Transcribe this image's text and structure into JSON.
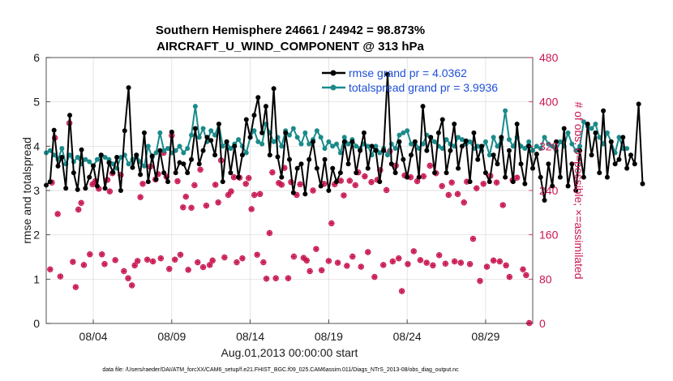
{
  "chart_data": {
    "type": "line",
    "title_line1": "Southern Hemisphere 24661 / 24942 = 98.873%",
    "title_line2": "AIRCRAFT_U_WIND_COMPONENT @ 313 hPa",
    "ylabel_left": "rmse and totalspread",
    "ylabel_right": "# of obs: o=possible; ×=assimilated",
    "xlabel": "Aug.01,2013 00:00:00 start",
    "footnote": "data file: /Users/raeder/DAI/ATM_forcXX/CAM6_setup/f.e21.FHIST_BGC.f09_025.CAM6assim.011/Diags_NTrS_2013-08/obs_diag_output.nc",
    "xlim": [
      1.0,
      32.0
    ],
    "ylim_left": [
      0,
      6
    ],
    "ylim_right": [
      0,
      480
    ],
    "yticks_left": [
      "0",
      "1",
      "2",
      "3",
      "4",
      "5",
      "6"
    ],
    "yticks_right": [
      "0",
      "80",
      "160",
      "240",
      "320",
      "400",
      "480"
    ],
    "xticks": [
      {
        "x": 4,
        "label": "08/04"
      },
      {
        "x": 9,
        "label": "08/09"
      },
      {
        "x": 14,
        "label": "08/14"
      },
      {
        "x": 19,
        "label": "08/19"
      },
      {
        "x": 24,
        "label": "08/24"
      },
      {
        "x": 29,
        "label": "08/29"
      }
    ],
    "legend": [
      {
        "name": "rmse grand pr = 4.0362",
        "color": "#000000"
      },
      {
        "name": "totalspread grand pr = 3.9936",
        "color": "#1a8a8a"
      }
    ],
    "series_colors": {
      "rmse": "#000000",
      "totalspread": "#1a8a8a",
      "obs": "#c8174f"
    },
    "x0": 1.0,
    "dx": 0.25,
    "rmse": [
      3.12,
      3.2,
      4.36,
      3.55,
      3.75,
      3.05,
      4.7,
      3.4,
      3.02,
      3.92,
      3.05,
      3.3,
      3.56,
      3.1,
      3.8,
      3.05,
      3.63,
      3.41,
      3.75,
      3.0,
      4.35,
      5.32,
      3.52,
      3.8,
      3.36,
      4.3,
      3.2,
      3.78,
      3.25,
      3.9,
      3.4,
      3.2,
      4.32,
      3.4,
      3.63,
      3.6,
      3.4,
      3.7,
      4.4,
      3.6,
      3.9,
      4.2,
      4.13,
      3.8,
      4.5,
      3.2,
      4.1,
      3.4,
      4.0,
      3.3,
      3.8,
      4.6,
      4.2,
      4.7,
      5.1,
      4.3,
      4.9,
      3.8,
      5.3,
      3.76,
      3.3,
      4.3,
      3.7,
      2.95,
      3.5,
      3.6,
      2.92,
      3.7,
      4.1,
      3.5,
      3.1,
      3.7,
      3.0,
      3.5,
      3.2,
      3.4,
      4.1,
      3.6,
      4.1,
      3.4,
      3.9,
      4.3,
      3.5,
      4.0,
      3.9,
      3.2,
      3.9,
      5.62,
      3.6,
      3.4,
      4.1,
      3.7,
      3.3,
      3.8,
      4.1,
      3.3,
      4.9,
      3.9,
      4.2,
      3.4,
      4.3,
      4.6,
      3.4,
      3.9,
      4.5,
      3.5,
      4.0,
      4.12,
      3.2,
      4.3,
      3.7,
      4.0,
      3.4,
      3.2,
      3.8,
      3.6,
      4.2,
      3.3,
      3.9,
      3.2,
      4.5,
      3.6,
      3.15,
      4.0,
      3.5,
      3.82,
      3.3,
      2.78,
      3.6,
      3.1,
      4.1,
      3.3,
      4.4,
      3.1,
      3.6,
      3.0,
      3.9,
      3.3,
      4.5,
      3.8,
      4.3,
      3.4,
      4.8,
      3.3,
      4.1,
      3.6,
      3.7,
      4.2,
      3.5,
      3.8,
      3.6,
      4.95,
      3.15
    ],
    "spread": [
      3.85,
      3.9,
      3.8,
      3.7,
      3.95,
      3.6,
      3.8,
      3.65,
      3.75,
      3.6,
      3.7,
      3.65,
      3.55,
      3.7,
      3.8,
      3.75,
      3.7,
      3.6,
      3.5,
      3.75,
      3.8,
      3.6,
      3.7,
      3.8,
      3.65,
      3.55,
      4.0,
      3.75,
      3.85,
      4.3,
      3.9,
      3.95,
      3.85,
      3.9,
      4.0,
      3.85,
      3.95,
      4.25,
      4.9,
      4.2,
      4.4,
      4.1,
      4.35,
      4.25,
      4.5,
      4.0,
      4.1,
      3.95,
      4.05,
      4.15,
      4.0,
      3.85,
      4.2,
      4.35,
      4.1,
      4.05,
      4.5,
      4.3,
      4.1,
      4.2,
      4.0,
      4.35,
      4.25,
      4.4,
      4.2,
      4.05,
      4.3,
      4.05,
      4.15,
      4.35,
      4.2,
      3.95,
      4.1,
      4.0,
      4.05,
      3.85,
      4.2,
      4.05,
      4.15,
      4.0,
      3.95,
      4.05,
      4.0,
      3.8,
      4.0,
      3.85,
      3.95,
      3.8,
      4.05,
      3.95,
      4.25,
      4.3,
      4.35,
      4.05,
      4.1,
      3.95,
      4.05,
      4.25,
      4.2,
      4.1,
      4.0,
      3.95,
      4.15,
      4.05,
      4.0,
      4.2,
      4.15,
      4.05,
      4.1,
      3.95,
      4.0,
      3.9,
      4.1,
      3.8,
      4.2,
      4.0,
      4.15,
      4.8,
      4.15,
      4.0,
      4.2,
      4.0,
      3.95,
      4.1,
      3.9,
      4.0,
      3.95,
      4.2,
      4.05,
      4.0,
      3.9,
      4.1,
      4.0,
      4.3,
      4.05,
      3.9,
      4.0,
      4.55,
      4.45,
      4.4,
      4.5,
      4.2,
      4.05,
      4.3,
      4.1,
      3.85,
      4.2,
      3.95,
      3.95
    ],
    "obs_possible": [
      [
        1.25,
        1.22
      ],
      [
        1.36,
        3.18
      ],
      [
        1.55,
        4.19
      ],
      [
        1.73,
        2.47
      ],
      [
        1.9,
        1.06
      ],
      [
        2.48,
        4.52
      ],
      [
        2.7,
        1.39
      ],
      [
        2.88,
        0.82
      ],
      [
        3.05,
        2.57
      ],
      [
        3.23,
        2.72
      ],
      [
        3.4,
        1.32
      ],
      [
        3.78,
        1.56
      ],
      [
        3.95,
        3.14
      ],
      [
        4.13,
        3.21
      ],
      [
        4.35,
        3.04
      ],
      [
        4.55,
        1.56
      ],
      [
        4.72,
        1.34
      ],
      [
        4.9,
        3.24
      ],
      [
        5.05,
        2.98
      ],
      [
        5.22,
        3.39
      ],
      [
        5.4,
        1.43
      ],
      [
        5.75,
        3.35
      ],
      [
        5.95,
        1.18
      ],
      [
        6.22,
        1.02
      ],
      [
        6.46,
        0.86
      ],
      [
        6.64,
        1.31
      ],
      [
        6.82,
        1.41
      ],
      [
        7.0,
        2.85
      ],
      [
        7.15,
        3.15
      ],
      [
        7.44,
        1.44
      ],
      [
        7.63,
        3.54
      ],
      [
        7.8,
        1.4
      ],
      [
        7.96,
        3.25
      ],
      [
        8.13,
        3.37
      ],
      [
        8.3,
        1.47
      ],
      [
        8.48,
        3.85
      ],
      [
        8.66,
        3.31
      ],
      [
        8.84,
        1.23
      ],
      [
        9.0,
        4.24
      ],
      [
        9.2,
        1.44
      ],
      [
        9.37,
        3.21
      ],
      [
        9.55,
        1.55
      ],
      [
        9.72,
        2.62
      ],
      [
        9.9,
        2.86
      ],
      [
        10.05,
        1.21
      ],
      [
        10.25,
        2.61
      ],
      [
        10.45,
        3.12
      ],
      [
        10.65,
        1.38
      ],
      [
        10.82,
        3.47
      ],
      [
        11.0,
        1.27
      ],
      [
        11.2,
        2.66
      ],
      [
        11.42,
        1.32
      ],
      [
        11.6,
        1.42
      ],
      [
        11.78,
        3.13
      ],
      [
        11.96,
        2.73
      ],
      [
        12.14,
        3.68
      ],
      [
        12.36,
        1.49
      ],
      [
        12.6,
        2.9
      ],
      [
        12.78,
        2.98
      ],
      [
        12.96,
        3.3
      ],
      [
        13.14,
        1.38
      ],
      [
        13.32,
        3.29
      ],
      [
        13.5,
        1.47
      ],
      [
        13.72,
        3.15
      ],
      [
        13.9,
        3.28
      ],
      [
        14.08,
        2.58
      ],
      [
        14.26,
        2.9
      ],
      [
        14.44,
        1.55
      ],
      [
        14.62,
        2.92
      ],
      [
        14.84,
        1.38
      ],
      [
        15.03,
        1.01
      ],
      [
        15.23,
        2.04
      ],
      [
        15.41,
        3.41
      ],
      [
        15.63,
        1.02
      ],
      [
        15.82,
        3.17
      ],
      [
        16.0,
        3.13
      ],
      [
        16.18,
        3.51
      ],
      [
        16.42,
        1.02
      ],
      [
        16.6,
        3.19
      ],
      [
        16.78,
        1.51
      ],
      [
        16.96,
        2.9
      ],
      [
        17.18,
        3.14
      ],
      [
        17.4,
        1.48
      ],
      [
        17.6,
        1.42
      ],
      [
        17.8,
        1.18
      ],
      [
        18.0,
        3.0
      ],
      [
        18.2,
        1.68
      ],
      [
        18.55,
        1.2
      ],
      [
        18.7,
        3.15
      ],
      [
        19.0,
        1.41
      ],
      [
        19.18,
        2.26
      ],
      [
        19.38,
        3.14
      ],
      [
        19.58,
        1.37
      ],
      [
        19.77,
        3.22
      ],
      [
        19.96,
        2.89
      ],
      [
        20.16,
        1.3
      ],
      [
        20.34,
        3.22
      ],
      [
        20.52,
        1.51
      ],
      [
        20.7,
        3.12
      ],
      [
        20.88,
        3.41
      ],
      [
        21.06,
        1.28
      ],
      [
        21.3,
        3.32
      ],
      [
        21.5,
        1.61
      ],
      [
        21.72,
        3.19
      ],
      [
        21.92,
        1.05
      ],
      [
        22.1,
        3.24
      ],
      [
        22.28,
        3.46
      ],
      [
        22.48,
        1.32
      ],
      [
        22.68,
        3.01
      ],
      [
        22.9,
        3.89
      ],
      [
        23.08,
        1.4
      ],
      [
        23.28,
        3.56
      ],
      [
        23.46,
        1.47
      ],
      [
        23.66,
        0.73
      ],
      [
        23.84,
        3.34
      ],
      [
        24.04,
        1.34
      ],
      [
        24.22,
        3.3
      ],
      [
        24.42,
        1.63
      ],
      [
        24.64,
        3.21
      ],
      [
        24.84,
        1.43
      ],
      [
        25.04,
        3.32
      ],
      [
        25.24,
        1.37
      ],
      [
        25.45,
        3.56
      ],
      [
        25.64,
        1.31
      ],
      [
        25.84,
        3.39
      ],
      [
        26.04,
        1.54
      ],
      [
        26.22,
        3.1
      ],
      [
        26.44,
        1.35
      ],
      [
        26.64,
        2.9
      ],
      [
        26.84,
        3.18
      ],
      [
        27.02,
        1.4
      ],
      [
        27.22,
        2.92
      ],
      [
        27.42,
        1.37
      ],
      [
        27.62,
        2.73
      ],
      [
        27.8,
        3.2
      ],
      [
        28.0,
        1.34
      ],
      [
        28.2,
        1.91
      ],
      [
        28.42,
        3.05
      ],
      [
        28.64,
        0.96
      ],
      [
        28.86,
        3.15
      ],
      [
        29.08,
        1.28
      ],
      [
        29.3,
        3.33
      ],
      [
        29.5,
        1.42
      ],
      [
        29.7,
        3.18
      ],
      [
        29.9,
        1.4
      ],
      [
        30.1,
        2.67
      ],
      [
        30.3,
        1.31
      ],
      [
        30.52,
        1.05
      ],
      [
        30.72,
        3.23
      ],
      [
        31.0,
        3.29
      ],
      [
        31.38,
        1.22
      ],
      [
        31.58,
        1.09
      ],
      [
        31.78,
        0.01
      ]
    ]
  }
}
